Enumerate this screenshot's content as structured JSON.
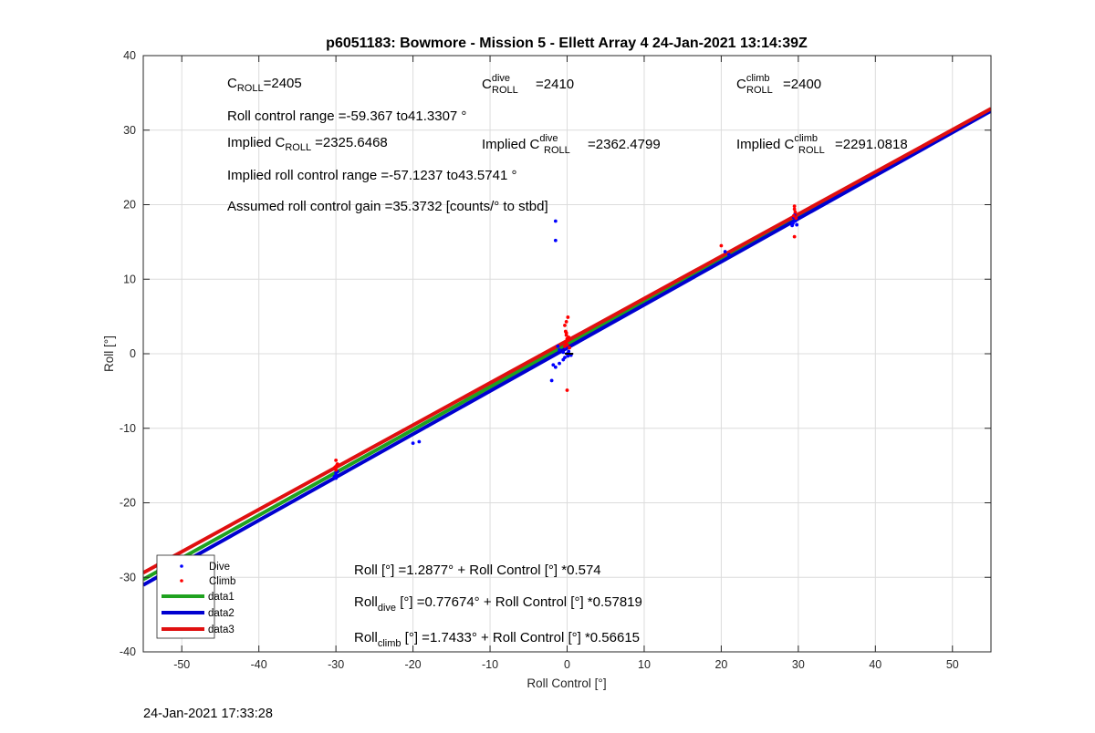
{
  "chart_data": {
    "type": "scatter",
    "title": "p6051183: Bowmore - Mission 5 - Ellett Array 4 24-Jan-2021 13:14:39Z",
    "xlabel": "Roll Control [°]",
    "ylabel": "Roll [°]",
    "xlim": [
      -55,
      55
    ],
    "ylim": [
      -40,
      40
    ],
    "xticks": [
      -50,
      -40,
      -30,
      -20,
      -10,
      0,
      10,
      20,
      30,
      40,
      50
    ],
    "yticks": [
      -40,
      -30,
      -20,
      -10,
      0,
      10,
      20,
      30,
      40
    ],
    "grid": true,
    "legend_position": "bottom-left",
    "series": [
      {
        "name": "Dive",
        "kind": "points",
        "color": "#0000ff",
        "x": [
          -30,
          -30,
          -30,
          -29.8,
          -30.2,
          -20,
          -19.2,
          -50,
          -1.5,
          -1.5,
          -2,
          -1.5,
          -1,
          -1.8,
          -1.2,
          -1,
          -0.5,
          -0.3,
          0,
          0.2,
          0.5,
          -0.5,
          -0.2,
          0.1,
          20.5,
          21,
          29.3,
          29.4,
          29.6,
          29.8,
          29.5,
          29.2
        ],
        "y": [
          -16.7,
          -16.3,
          -16,
          -15.8,
          -16.5,
          -12,
          -11.8,
          -28.3,
          17.8,
          15.2,
          -3.6,
          -1.8,
          -1.3,
          -1.5,
          1,
          0.5,
          0.2,
          -0.5,
          0,
          0.3,
          -0.2,
          -0.8,
          0.8,
          -0.3,
          13.7,
          13.3,
          17.5,
          18.3,
          17.8,
          17.3,
          18.6,
          17.2
        ]
      },
      {
        "name": "Climb",
        "kind": "points",
        "color": "#ff0000",
        "x": [
          -30,
          -29.8,
          -30.1,
          -30,
          -29.9,
          -0.3,
          -0.2,
          -0.1,
          0,
          0.1,
          -0.2,
          0,
          -0.1,
          0.2,
          -0.3,
          0.1,
          -0.1,
          0.3,
          0,
          20,
          29.5,
          29.6,
          29.4,
          29.5,
          29.7,
          29.5
        ],
        "y": [
          -14.3,
          -14.8,
          -15.2,
          -15.6,
          -15,
          3.8,
          3,
          2.5,
          2,
          1.8,
          1.5,
          1.2,
          2.8,
          2.2,
          1,
          4.9,
          4.3,
          0.8,
          -4.9,
          14.5,
          19.8,
          19,
          18.5,
          15.7,
          18.2,
          19.4
        ]
      },
      {
        "name": "data1",
        "kind": "line",
        "color": "#1fa21f",
        "intercept": 1.2877,
        "slope": 0.574
      },
      {
        "name": "data2",
        "kind": "line",
        "color": "#0000d0",
        "intercept": 0.77674,
        "slope": 0.57819
      },
      {
        "name": "data3",
        "kind": "line",
        "color": "#e01010",
        "intercept": 1.7433,
        "slope": 0.56615
      }
    ]
  },
  "annotations": {
    "c_roll": {
      "base": "C",
      "sub": "ROLL",
      "value": "=2405"
    },
    "c_roll_dive": {
      "base": "C",
      "sup": "dive",
      "sub": "ROLL",
      "value": "=2410"
    },
    "c_roll_climb": {
      "base": "C",
      "sup": "climb",
      "sub": "ROLL",
      "value": "=2400"
    },
    "roll_range": "Roll control range =-59.367 to41.3307 °",
    "implied_c_roll": {
      "prefix": "Implied C",
      "sub": "ROLL",
      "value": "=2325.6468"
    },
    "implied_c_dive": {
      "prefix": "Implied C",
      "sup": "dive",
      "sub": "ROLL",
      "value": "=2362.4799"
    },
    "implied_c_climb": {
      "prefix": "Implied C",
      "sup": "climb",
      "sub": "ROLL",
      "value": "=2291.0818"
    },
    "implied_range": "Implied roll control range =-57.1237 to43.5741 °",
    "gain": "Assumed roll control gain =35.3732 [counts/° to stbd]",
    "fit_all": "Roll [°] =1.2877° + Roll Control [°] *0.574",
    "fit_dive": {
      "base": "Roll",
      "sub": "dive",
      "rest": " [°] =0.77674° + Roll Control [°] *0.57819"
    },
    "fit_climb": {
      "base": "Roll",
      "sub": "climb",
      "rest": " [°] =1.7433° + Roll Control [°] *0.56615"
    }
  },
  "footer": {
    "timestamp": "24-Jan-2021 17:33:28"
  }
}
